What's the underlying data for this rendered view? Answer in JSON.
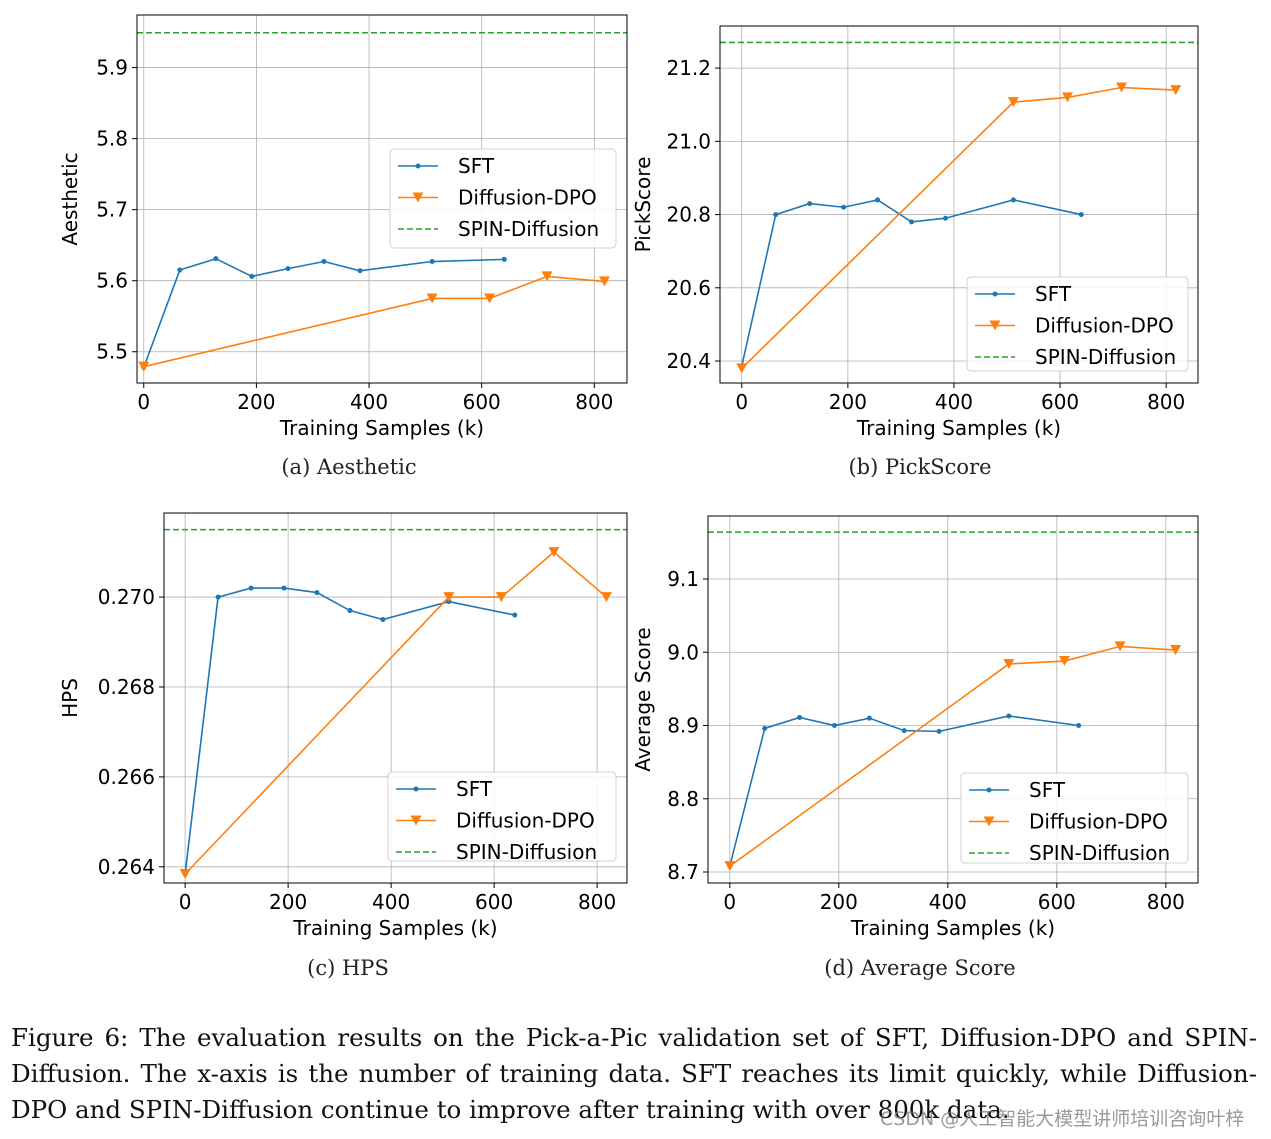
{
  "colors": {
    "SFT": "#1f77b4",
    "Diffusion-DPO": "#ff7f0e",
    "SPIN-Diffusion": "#2ca02c"
  },
  "chart_data": [
    {
      "type": "line",
      "subcaption": "(a)  Aesthetic",
      "xlabel": "Training Samples (k)",
      "ylabel": "Aesthetic",
      "xlim": [
        -12,
        858
      ],
      "ylim": [
        5.456,
        5.974
      ],
      "grid": true,
      "legend": "center-right",
      "xticks": [
        0,
        200,
        400,
        600,
        800
      ],
      "xtick_labels": [
        "0",
        "200",
        "400",
        "600",
        "800"
      ],
      "yticks": [
        5.5,
        5.6,
        5.7,
        5.8,
        5.9
      ],
      "ytick_labels": [
        "5.5",
        "5.6",
        "5.7",
        "5.8",
        "5.9"
      ],
      "series": [
        {
          "name": "SFT",
          "marker": "dot",
          "x": [
            0,
            64,
            128,
            192,
            256,
            320,
            384,
            512,
            640
          ],
          "y": [
            5.478,
            5.615,
            5.631,
            5.606,
            5.617,
            5.627,
            5.614,
            5.627,
            5.63
          ]
        },
        {
          "name": "Diffusion-DPO",
          "marker": "triangle-down",
          "x": [
            0,
            512,
            614,
            716,
            818
          ],
          "y": [
            5.479,
            5.575,
            5.575,
            5.606,
            5.599
          ]
        },
        {
          "name": "SPIN-Diffusion",
          "style": "dashed",
          "hline": 5.949
        }
      ]
    },
    {
      "type": "line",
      "subcaption": "(b)  PickScore",
      "xlabel": "Training Samples (k)",
      "ylabel": "PickScore",
      "xlim": [
        -41,
        860
      ],
      "ylim": [
        20.34,
        21.315
      ],
      "grid": true,
      "legend": "lower-right",
      "xticks": [
        0,
        200,
        400,
        600,
        800
      ],
      "xtick_labels": [
        "0",
        "200",
        "400",
        "600",
        "800"
      ],
      "yticks": [
        20.4,
        20.6,
        20.8,
        21.0,
        21.2
      ],
      "ytick_labels": [
        "20.4",
        "20.6",
        "20.8",
        "21.0",
        "21.2"
      ],
      "series": [
        {
          "name": "SFT",
          "marker": "dot",
          "x": [
            0,
            64,
            128,
            192,
            256,
            320,
            384,
            512,
            640
          ],
          "y": [
            20.386,
            20.8,
            20.83,
            20.82,
            20.84,
            20.78,
            20.79,
            20.84,
            20.8
          ]
        },
        {
          "name": "Diffusion-DPO",
          "marker": "triangle-down",
          "x": [
            0,
            512,
            614,
            716,
            818
          ],
          "y": [
            20.38,
            21.107,
            21.12,
            21.147,
            21.14
          ]
        },
        {
          "name": "SPIN-Diffusion",
          "style": "dashed",
          "hline": 21.27
        }
      ]
    },
    {
      "type": "line",
      "subcaption": "(c)  HPS",
      "xlabel": "Training Samples (k)",
      "ylabel": "HPS",
      "xlim": [
        -41,
        858
      ],
      "ylim": [
        0.26364,
        0.27187
      ],
      "grid": true,
      "legend": "lower-right",
      "xticks": [
        0,
        200,
        400,
        600,
        800
      ],
      "xtick_labels": [
        "0",
        "200",
        "400",
        "600",
        "800"
      ],
      "yticks": [
        0.264,
        0.266,
        0.268,
        0.27
      ],
      "ytick_labels": [
        "0.264",
        "0.266",
        "0.268",
        "0.270"
      ],
      "series": [
        {
          "name": "SFT",
          "marker": "dot",
          "x": [
            0,
            64,
            128,
            192,
            256,
            320,
            384,
            512,
            640
          ],
          "y": [
            0.26384,
            0.27,
            0.2702,
            0.2702,
            0.2701,
            0.2697,
            0.2695,
            0.2699,
            0.2696
          ]
        },
        {
          "name": "Diffusion-DPO",
          "marker": "triangle-down",
          "x": [
            0,
            512,
            614,
            716,
            818
          ],
          "y": [
            0.26384,
            0.27,
            0.27,
            0.271,
            0.27
          ]
        },
        {
          "name": "SPIN-Diffusion",
          "style": "dashed",
          "hline": 0.2715
        }
      ]
    },
    {
      "type": "line",
      "subcaption": "(d)  Average Score",
      "xlabel": "Training Samples (k)",
      "ylabel": "Average Score",
      "xlim": [
        -40,
        859
      ],
      "ylim": [
        8.685,
        9.186
      ],
      "grid": true,
      "legend": "lower-right",
      "xticks": [
        0,
        200,
        400,
        600,
        800
      ],
      "xtick_labels": [
        "0",
        "200",
        "400",
        "600",
        "800"
      ],
      "yticks": [
        8.7,
        8.8,
        8.9,
        9.0,
        9.1
      ],
      "ytick_labels": [
        "8.7",
        "8.8",
        "8.9",
        "9.0",
        "9.1"
      ],
      "series": [
        {
          "name": "SFT",
          "marker": "dot",
          "x": [
            0,
            64,
            128,
            192,
            256,
            320,
            384,
            512,
            640
          ],
          "y": [
            8.708,
            8.896,
            8.911,
            8.9,
            8.91,
            8.893,
            8.892,
            8.913,
            8.9
          ]
        },
        {
          "name": "Diffusion-DPO",
          "marker": "triangle-down",
          "x": [
            0,
            512,
            614,
            716,
            818
          ],
          "y": [
            8.708,
            8.984,
            8.988,
            9.008,
            9.003
          ]
        },
        {
          "name": "SPIN-Diffusion",
          "style": "dashed",
          "hline": 9.164
        }
      ]
    }
  ],
  "caption": "Figure 6:  The evaluation results on the Pick-a-Pic validation set of SFT, Diffusion-DPO and SPIN-Diffusion.  The x-axis is the number of training data.  SFT reaches its limit quickly, while Diffusion-DPO and SPIN-Diffusion continue to improve after training with over 800k data.",
  "watermark": "CSDN @人工智能大模型讲师培训咨询叶梓"
}
